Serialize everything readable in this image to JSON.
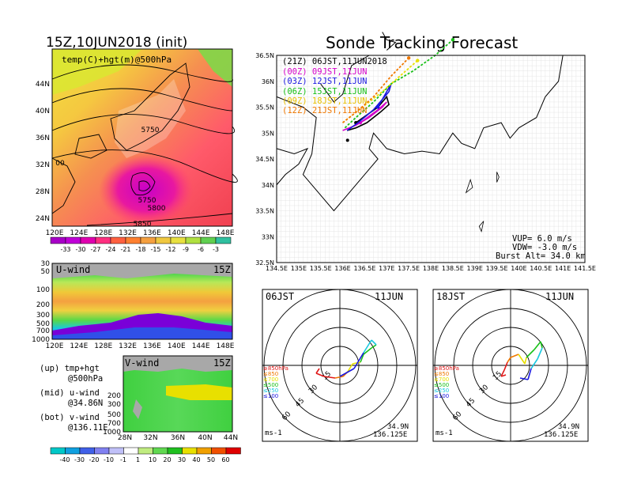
{
  "left_title": "15Z,10JUN2018 (init)",
  "right_title": "Sonde Tracking Forecast",
  "colors": {
    "magenta": "#d400c8",
    "purple": "#7a00d8",
    "blue": "#1a18e0",
    "green": "#18c018",
    "orange": "#f07800",
    "red": "#e01818",
    "yellow": "#e8e000",
    "cyan": "#00c8f0",
    "lightgreen": "#a8ec50",
    "gray": "#a8a8a8"
  },
  "chart_data": [
    {
      "type": "heatmap",
      "label": "temp(C)+hgt(m)@500hPa",
      "x_ticks": [
        "120E",
        "124E",
        "128E",
        "132E",
        "136E",
        "140E",
        "144E",
        "148E"
      ],
      "y_ticks": [
        "24N",
        "28N",
        "32N",
        "36N",
        "40N",
        "44N"
      ],
      "contour_labels": [
        "5750",
        "5750",
        "5800",
        "5850",
        "00"
      ],
      "colorbar_ticks": [
        "-33",
        "-30",
        "-27",
        "-24",
        "-21",
        "-18",
        "-15",
        "-12",
        "-9",
        "-6",
        "-3"
      ]
    },
    {
      "type": "heatmap",
      "label": "U-wind",
      "time": "15Z",
      "x_ticks": [
        "120E",
        "124E",
        "128E",
        "132E",
        "136E",
        "140E",
        "144E",
        "148E"
      ],
      "y_ticks": [
        "30",
        "50",
        "100",
        "200",
        "300",
        "500",
        "700",
        "1000"
      ]
    },
    {
      "type": "heatmap",
      "label": "V-wind",
      "time": "15Z",
      "x_ticks": [
        "28N",
        "32N",
        "36N",
        "40N",
        "44N"
      ],
      "y_ticks": [
        "200",
        "300",
        "500",
        "700",
        "1000"
      ],
      "colorbar_ticks": [
        "-40",
        "-30",
        "-20",
        "-10",
        "-1",
        "1",
        "10",
        "20",
        "30",
        "40",
        "50",
        "60"
      ]
    },
    {
      "type": "line",
      "xlim": [
        134.5,
        141.5
      ],
      "ylim": [
        32.5,
        36.5
      ],
      "x_ticks": [
        "134.5E",
        "135E",
        "135.5E",
        "136E",
        "136.5E",
        "137E",
        "137.5E",
        "138E",
        "138.5E",
        "139E",
        "139.5E",
        "140E",
        "140.5E",
        "141E",
        "141.5E"
      ],
      "y_ticks": [
        "32.5N",
        "33N",
        "33.5N",
        "34N",
        "34.5N",
        "35N",
        "35.5N",
        "36N",
        "36.5N"
      ],
      "launch_point": [
        136.11,
        34.86
      ],
      "series": [
        {
          "name": "(21Z) 06JST,11JUN2018",
          "color": "#000000",
          "x": [
            136.1,
            136.3,
            136.55,
            136.85,
            137.05,
            137.0,
            136.8,
            136.3
          ],
          "y": [
            35.05,
            35.1,
            35.2,
            35.4,
            35.55,
            35.7,
            35.5,
            35.2
          ]
        },
        {
          "name": "(00Z) 09JST,11JUN",
          "color": "#d400c8",
          "x": [
            136.0,
            136.3,
            136.6,
            136.9,
            137.0,
            136.8,
            136.4
          ],
          "y": [
            35.05,
            35.15,
            35.3,
            35.5,
            35.6,
            35.45,
            35.2
          ]
        },
        {
          "name": "(03Z) 12JST,11JUN",
          "color": "#1a18e0",
          "x": [
            136.1,
            136.35,
            136.7,
            137.05,
            137.1,
            136.8
          ],
          "y": [
            35.05,
            35.2,
            35.45,
            35.8,
            35.95,
            35.5
          ]
        },
        {
          "name": "(06Z) 15JST,11JUN",
          "color": "#18c018",
          "x": [
            136.05,
            136.3,
            136.7,
            137.1,
            137.6,
            138.1,
            138.5
          ],
          "y": [
            35.1,
            35.3,
            35.6,
            35.95,
            36.2,
            36.5,
            36.8
          ]
        },
        {
          "name": "(09Z) 18JST,11JUN",
          "color": "#e8e000",
          "x": [
            136.0,
            136.3,
            136.6,
            136.9,
            137.3,
            137.7
          ],
          "y": [
            35.2,
            35.4,
            35.6,
            35.8,
            36.1,
            36.4
          ]
        },
        {
          "name": "(12Z) 21JST,11JUN",
          "color": "#f07800",
          "x": [
            136.0,
            136.3,
            136.7,
            137.1,
            137.5
          ],
          "y": [
            35.2,
            35.4,
            35.7,
            36.1,
            36.45
          ]
        }
      ],
      "annotations": [
        "VUP= 6.0 m/s",
        "VDW= -3.0 m/s",
        "Burst Alt= 34.0 km"
      ]
    },
    {
      "type": "line",
      "subtype": "hodograph",
      "label": "06JST",
      "date": "11JUN",
      "ring_labels": [
        "15",
        "30",
        "45",
        "60"
      ],
      "unit": "ms-1",
      "location": [
        "34.9N",
        "136.125E"
      ],
      "legend": [
        "≥850hPa",
        "≤850",
        "≤700",
        "≤500",
        "≤250",
        "≤100"
      ]
    },
    {
      "type": "line",
      "subtype": "hodograph",
      "label": "18JST",
      "date": "11JUN",
      "ring_labels": [
        "15",
        "30",
        "45",
        "60"
      ],
      "unit": "ms-1",
      "location": [
        "34.9N",
        "136.125E"
      ],
      "legend": [
        "≥850hPa",
        "≤850",
        "≤700",
        "≤500",
        "≤250",
        "≤100"
      ]
    }
  ],
  "bottom_legend": [
    {
      "line1": "(up) tmp+hgt",
      "line2": "@500hPa"
    },
    {
      "line1": "(mid) u-wind",
      "line2": "@34.86N"
    },
    {
      "line1": "(bot) v-wind",
      "line2": "@136.11E"
    }
  ]
}
